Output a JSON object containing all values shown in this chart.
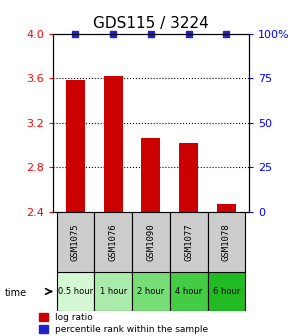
{
  "title": "GDS115 / 3224",
  "categories": [
    "GSM1075",
    "GSM1076",
    "GSM1090",
    "GSM1077",
    "GSM1078"
  ],
  "time_labels": [
    "0.5 hour",
    "1 hour",
    "2 hour",
    "4 hour",
    "6 hour"
  ],
  "log_ratios": [
    3.58,
    3.62,
    3.06,
    3.02,
    2.47
  ],
  "percentile_ranks": [
    100,
    100,
    100,
    100,
    100
  ],
  "ylim": [
    2.4,
    4.0
  ],
  "yticks": [
    2.4,
    2.8,
    3.2,
    3.6,
    4.0
  ],
  "right_yticks": [
    0,
    25,
    50,
    75,
    100
  ],
  "right_tick_labels": [
    "0",
    "25",
    "50",
    "75",
    "100%"
  ],
  "bar_color": "#cc0000",
  "percentile_color": "#2222cc",
  "sample_bg": "#cccccc",
  "bar_width": 0.5,
  "title_fontsize": 11,
  "tick_fontsize": 8,
  "label_fontsize": 7,
  "time_colors": [
    "#d4f7d4",
    "#aaeaaa",
    "#77dd77",
    "#44cc44",
    "#22bb22"
  ]
}
